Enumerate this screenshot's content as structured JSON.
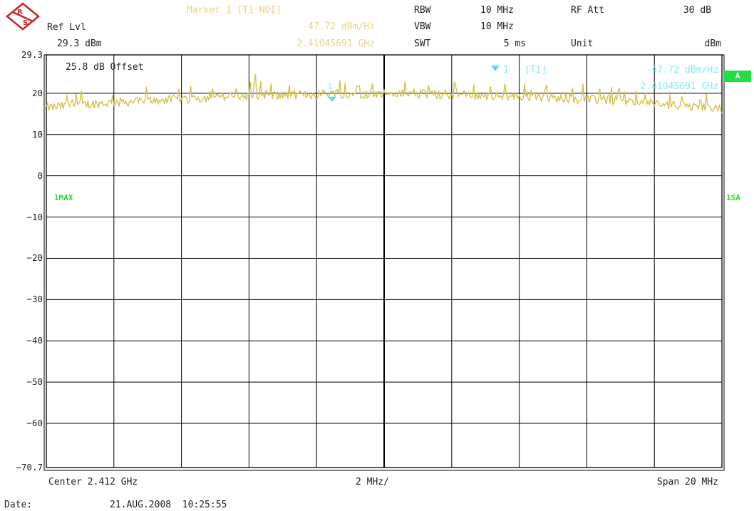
{
  "header": {
    "ref_lvl_label": "Ref Lvl",
    "ref_lvl_value": "29.3 dBm",
    "marker_title": "Marker 1 [T1 NOI]",
    "marker_level": "-47.72 dBm/Hz",
    "marker_freq": "2.41045691 GHz",
    "rbw_label": "RBW",
    "rbw_value": "10 MHz",
    "vbw_label": "VBW",
    "vbw_value": "10 MHz",
    "swt_label": "SWT",
    "swt_value": "5 ms",
    "rfatt_label": "RF Att",
    "rfatt_value": "30 dB",
    "unit_label": "Unit",
    "unit_value": "dBm"
  },
  "plot": {
    "offset_text": "25.8 dB Offset",
    "marker_id": "1",
    "marker_box_label": "[T1]",
    "marker_box_level": "-47.72 dBm/Hz",
    "marker_box_freq": "2.41045691 GHz",
    "trace_label": "1MAX",
    "right_label_a": "A",
    "right_label_sa": "1SA"
  },
  "footer": {
    "center": "Center 2.412 GHz",
    "div": "2 MHz/",
    "span": "Span 20 MHz",
    "date_label": "Date:",
    "date_value": "21.AUG.2008  10:25:55"
  },
  "colors": {
    "trace": "#d4c24a",
    "marker": "#5fd7f0",
    "grid": "#000000",
    "badge": "#22dd44"
  },
  "chart_data": {
    "type": "line",
    "xlabel": "",
    "ylabel": "",
    "x_unit": "GHz",
    "y_unit": "dBm",
    "xlim": [
      2.402,
      2.422
    ],
    "ylim": [
      -70.7,
      29.3
    ],
    "y_ticks": [
      "29.3",
      "20",
      "10",
      "0",
      "-10",
      "-20",
      "-30",
      "-40",
      "-50",
      "-60",
      "-70.7"
    ],
    "grid": true,
    "series": [
      {
        "x": [
          2.402,
          2.403,
          2.404,
          2.405,
          2.406,
          2.407,
          2.408,
          2.409,
          2.41,
          2.4105,
          2.411,
          2.412,
          2.413,
          2.414,
          2.415,
          2.416,
          2.417,
          2.418,
          2.419,
          2.42,
          2.421,
          2.422
        ],
        "y": [
          16.5,
          17.2,
          17.8,
          18.2,
          18.6,
          19.0,
          19.3,
          19.5,
          19.7,
          20.2,
          19.8,
          19.9,
          19.8,
          19.6,
          19.4,
          19.2,
          18.9,
          18.5,
          18.0,
          17.5,
          16.8,
          16.2
        ]
      }
    ],
    "markers": [
      {
        "name": "1",
        "x": 2.41045691,
        "y": 20.2
      }
    ]
  }
}
